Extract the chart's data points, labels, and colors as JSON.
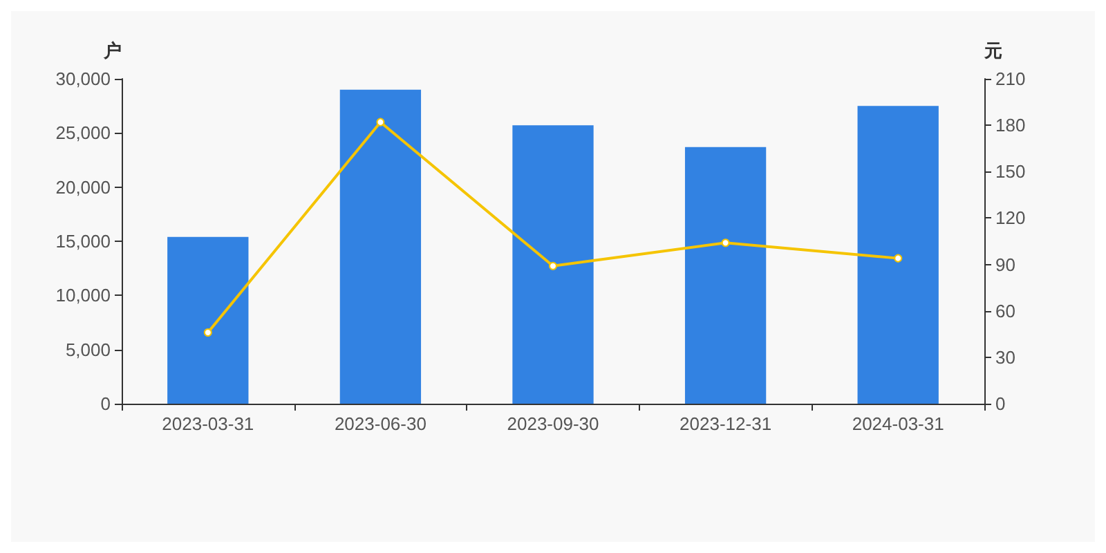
{
  "chart_data": {
    "type": "bar",
    "ylabel": "户",
    "y2label": "元",
    "categories": [
      "2023-03-31",
      "2023-06-30",
      "2023-09-30",
      "2023-12-31",
      "2024-03-31"
    ],
    "series": [
      {
        "color": "#3282e2",
        "values": [
          15400,
          29000,
          25700,
          23700,
          27500
        ]
      },
      {
        "type": "line",
        "axis": "y2",
        "color": "#f5c400",
        "values": [
          46,
          182,
          89,
          104,
          94
        ],
        "marker": "circle",
        "line_style": "solid"
      }
    ],
    "ylim": [
      0,
      30000
    ],
    "yticks": [
      0,
      {
        "value": 5000,
        "label": "5,000"
      },
      {
        "value": 10000,
        "label": "10,000"
      },
      {
        "value": 15000,
        "label": "15,000"
      },
      {
        "value": 20000,
        "label": "20,000"
      },
      {
        "value": 25000,
        "label": "25,000"
      },
      {
        "value": 30000,
        "label": "30,000"
      }
    ],
    "y2lim": [
      0,
      210
    ],
    "y2ticks": [
      0,
      30,
      60,
      90,
      120,
      150,
      180,
      210
    ],
    "grid": false
  }
}
